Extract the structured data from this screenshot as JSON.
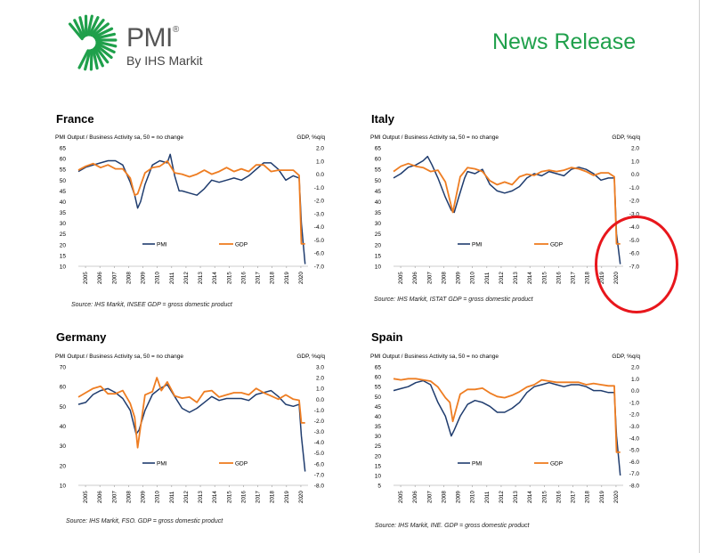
{
  "header": {
    "brand": "PMI",
    "registered": "®",
    "byline": "By IHS Markit",
    "release": "News Release"
  },
  "colors": {
    "pmi": "#1f3c6e",
    "gdp": "#ee7d22",
    "accent": "#1fa04b",
    "annotation": "#e8161c"
  },
  "common": {
    "left_label": "PMI Output / Business Activity sa, 50 = no change",
    "right_label": "GDP, %q/q",
    "legend_pmi": "PMI",
    "legend_gdp": "GDP",
    "years": [
      "2005",
      "2006",
      "2007",
      "2008",
      "2009",
      "2010",
      "2011",
      "2012",
      "2013",
      "2014",
      "2015",
      "2016",
      "2017",
      "2018",
      "2019",
      "2020"
    ]
  },
  "panels": [
    {
      "title": "France",
      "source": "Source: IHS Markit, INSEE GDP = gross domestic product",
      "left_ticks": [
        "65",
        "60",
        "55",
        "50",
        "45",
        "40",
        "35",
        "30",
        "25",
        "20",
        "15",
        "10"
      ],
      "right_ticks": [
        "2.0",
        "1.0",
        "0.0",
        "-1.0",
        "-2.0",
        "-3.0",
        "-4.0",
        "-5.0",
        "-6.0",
        "-7.0"
      ]
    },
    {
      "title": "Italy",
      "source": "Source: IHS Markit, ISTAT GDP = gross domestic product",
      "left_ticks": [
        "65",
        "60",
        "55",
        "50",
        "45",
        "40",
        "35",
        "30",
        "25",
        "20",
        "15",
        "10"
      ],
      "right_ticks": [
        "2.0",
        "1.0",
        "0.0",
        "-1.0",
        "-2.0",
        "-3.0",
        "-4.0",
        "-5.0",
        "-6.0",
        "-7.0"
      ]
    },
    {
      "title": "Germany",
      "source": "Source: IHS Markit, FSO. GDP = gross domestic product",
      "left_ticks": [
        "70",
        "60",
        "50",
        "40",
        "30",
        "20",
        "10"
      ],
      "right_ticks": [
        "3.0",
        "2.0",
        "1.0",
        "0.0",
        "-1.0",
        "-2.0",
        "-3.0",
        "-4.0",
        "-5.0",
        "-6.0",
        "-7.0",
        "-8.0"
      ]
    },
    {
      "title": "Spain",
      "source": "Source: IHS Markit, INE. GDP = gross domestic product",
      "left_ticks": [
        "65",
        "60",
        "55",
        "50",
        "45",
        "40",
        "35",
        "30",
        "25",
        "20",
        "15",
        "10",
        "5"
      ],
      "right_ticks": [
        "2.0",
        "1.0",
        "0.0",
        "-1.0",
        "-2.0",
        "-3.0",
        "-4.0",
        "-5.0",
        "-6.0",
        "-7.0",
        "-8.0"
      ]
    }
  ],
  "chart_data": [
    {
      "type": "line",
      "country": "France",
      "x_range": [
        2005.0,
        2020.5
      ],
      "y_left": [
        10,
        65
      ],
      "y_right": [
        -7,
        2
      ],
      "series": [
        {
          "name": "PMI",
          "axis": "left",
          "x": [
            2005.0,
            2005.5,
            2006.0,
            2006.5,
            2007.0,
            2007.5,
            2008.0,
            2008.5,
            2008.8,
            2009.0,
            2009.2,
            2009.5,
            2010.0,
            2010.5,
            2011.0,
            2011.2,
            2011.5,
            2011.8,
            2012.0,
            2012.5,
            2013.0,
            2013.5,
            2014.0,
            2014.5,
            2015.0,
            2015.5,
            2016.0,
            2016.5,
            2017.0,
            2017.5,
            2018.0,
            2018.5,
            2019.0,
            2019.5,
            2019.9,
            2020.05,
            2020.3
          ],
          "y": [
            54,
            56,
            57,
            58,
            59,
            59,
            57,
            49,
            43,
            37,
            40,
            48,
            57,
            59,
            58,
            62,
            52,
            45,
            45,
            44,
            43,
            46,
            50,
            49,
            50,
            51,
            50,
            52,
            55,
            58,
            58,
            55,
            50,
            52,
            51,
            30,
            11
          ]
        },
        {
          "name": "GDP",
          "axis": "right",
          "x": [
            2005.0,
            2005.5,
            2006.0,
            2006.5,
            2007.0,
            2007.5,
            2008.0,
            2008.5,
            2008.8,
            2009.0,
            2009.5,
            2010.0,
            2010.5,
            2011.0,
            2011.5,
            2012.0,
            2012.5,
            2013.0,
            2013.5,
            2014.0,
            2014.5,
            2015.0,
            2015.5,
            2016.0,
            2016.5,
            2017.0,
            2017.5,
            2018.0,
            2018.5,
            2019.0,
            2019.5,
            2019.9,
            2020.05,
            2020.3
          ],
          "y": [
            0.3,
            0.6,
            0.8,
            0.5,
            0.7,
            0.4,
            0.4,
            -0.3,
            -1.6,
            -1.5,
            0.1,
            0.5,
            0.6,
            1.0,
            0.1,
            0.0,
            -0.2,
            0.0,
            0.3,
            0.0,
            0.2,
            0.5,
            0.2,
            0.4,
            0.2,
            0.7,
            0.7,
            0.2,
            0.3,
            0.3,
            0.3,
            -0.1,
            -5.3,
            -5.3
          ]
        }
      ]
    },
    {
      "type": "line",
      "country": "Italy",
      "x_range": [
        2005.0,
        2020.5
      ],
      "y_left": [
        10,
        65
      ],
      "y_right": [
        -7,
        2
      ],
      "series": [
        {
          "name": "PMI",
          "axis": "left",
          "x": [
            2005.0,
            2005.5,
            2006.0,
            2006.5,
            2007.0,
            2007.3,
            2007.6,
            2008.0,
            2008.5,
            2008.9,
            2009.1,
            2009.4,
            2009.8,
            2010.0,
            2010.5,
            2011.0,
            2011.5,
            2012.0,
            2012.5,
            2013.0,
            2013.5,
            2014.0,
            2014.5,
            2015.0,
            2015.5,
            2016.0,
            2016.5,
            2017.0,
            2017.5,
            2018.0,
            2018.5,
            2019.0,
            2019.5,
            2019.9,
            2020.05,
            2020.3
          ],
          "y": [
            51,
            53,
            56,
            57,
            59,
            61,
            57,
            51,
            42,
            36,
            35,
            42,
            51,
            54,
            53,
            55,
            48,
            45,
            44,
            45,
            47,
            51,
            53,
            52,
            54,
            53,
            52,
            55,
            56,
            55,
            53,
            50,
            51,
            51,
            25,
            11
          ]
        },
        {
          "name": "GDP",
          "axis": "right",
          "x": [
            2005.0,
            2005.5,
            2006.0,
            2006.5,
            2007.0,
            2007.5,
            2008.0,
            2008.5,
            2008.8,
            2009.0,
            2009.5,
            2010.0,
            2010.5,
            2011.0,
            2011.5,
            2012.0,
            2012.5,
            2013.0,
            2013.5,
            2014.0,
            2014.5,
            2015.0,
            2015.5,
            2016.0,
            2016.5,
            2017.0,
            2017.5,
            2018.0,
            2018.5,
            2019.0,
            2019.5,
            2019.9,
            2020.05,
            2020.3
          ],
          "y": [
            0.2,
            0.6,
            0.8,
            0.6,
            0.5,
            0.2,
            0.3,
            -0.6,
            -2.0,
            -2.9,
            -0.2,
            0.5,
            0.4,
            0.2,
            -0.5,
            -0.8,
            -0.6,
            -0.8,
            -0.2,
            0.0,
            -0.1,
            0.2,
            0.3,
            0.2,
            0.3,
            0.5,
            0.4,
            0.2,
            -0.1,
            0.1,
            0.1,
            -0.2,
            -5.3,
            -5.3
          ]
        }
      ]
    },
    {
      "type": "line",
      "country": "Germany",
      "x_range": [
        2005.0,
        2020.5
      ],
      "y_left": [
        10,
        70
      ],
      "y_right": [
        -8,
        3
      ],
      "series": [
        {
          "name": "PMI",
          "axis": "left",
          "x": [
            2005.0,
            2005.5,
            2006.0,
            2006.5,
            2007.0,
            2007.5,
            2008.0,
            2008.5,
            2008.9,
            2009.1,
            2009.5,
            2010.0,
            2010.5,
            2011.0,
            2011.5,
            2012.0,
            2012.5,
            2013.0,
            2013.5,
            2014.0,
            2014.5,
            2015.0,
            2015.5,
            2016.0,
            2016.5,
            2017.0,
            2017.5,
            2018.0,
            2018.5,
            2019.0,
            2019.5,
            2019.9,
            2020.05,
            2020.3
          ],
          "y": [
            51,
            52,
            56,
            58,
            59,
            57,
            54,
            48,
            36,
            38,
            48,
            56,
            59,
            61,
            55,
            49,
            47,
            49,
            52,
            55,
            53,
            54,
            54,
            54,
            53,
            56,
            57,
            58,
            55,
            51,
            50,
            51,
            35,
            17
          ]
        },
        {
          "name": "GDP",
          "axis": "right",
          "x": [
            2005.0,
            2005.5,
            2006.0,
            2006.5,
            2007.0,
            2007.5,
            2008.0,
            2008.5,
            2008.8,
            2009.0,
            2009.5,
            2010.0,
            2010.3,
            2010.6,
            2011.0,
            2011.5,
            2012.0,
            2012.5,
            2013.0,
            2013.5,
            2014.0,
            2014.5,
            2015.0,
            2015.5,
            2016.0,
            2016.5,
            2017.0,
            2017.5,
            2018.0,
            2018.5,
            2019.0,
            2019.5,
            2019.9,
            2020.05,
            2020.3
          ],
          "y": [
            0.2,
            0.6,
            1.0,
            1.2,
            0.5,
            0.5,
            0.8,
            -0.4,
            -1.7,
            -4.5,
            0.4,
            0.7,
            2.0,
            0.8,
            1.6,
            0.3,
            0.1,
            0.2,
            -0.3,
            0.7,
            0.8,
            0.2,
            0.4,
            0.6,
            0.6,
            0.4,
            1.0,
            0.6,
            0.3,
            0.0,
            0.4,
            0.0,
            -0.1,
            -2.2,
            -2.2
          ]
        }
      ]
    },
    {
      "type": "line",
      "country": "Spain",
      "x_range": [
        2005.0,
        2020.5
      ],
      "y_left": [
        5,
        65
      ],
      "y_right": [
        -8,
        2
      ],
      "series": [
        {
          "name": "PMI",
          "axis": "left",
          "x": [
            2005.0,
            2005.5,
            2006.0,
            2006.5,
            2007.0,
            2007.5,
            2008.0,
            2008.5,
            2008.9,
            2009.1,
            2009.5,
            2010.0,
            2010.5,
            2011.0,
            2011.5,
            2012.0,
            2012.5,
            2013.0,
            2013.5,
            2014.0,
            2014.5,
            2015.0,
            2015.5,
            2016.0,
            2016.5,
            2017.0,
            2017.5,
            2018.0,
            2018.5,
            2019.0,
            2019.5,
            2019.9,
            2020.05,
            2020.3
          ],
          "y": [
            53,
            54,
            55,
            57,
            58,
            56,
            47,
            40,
            30,
            33,
            40,
            46,
            48,
            47,
            45,
            42,
            42,
            44,
            47,
            52,
            55,
            56,
            57,
            56,
            55,
            56,
            56,
            55,
            53,
            53,
            52,
            52,
            30,
            10
          ]
        },
        {
          "name": "GDP",
          "axis": "right",
          "x": [
            2005.0,
            2005.5,
            2006.0,
            2006.5,
            2007.0,
            2007.5,
            2008.0,
            2008.5,
            2008.8,
            2009.0,
            2009.5,
            2010.0,
            2010.5,
            2011.0,
            2011.5,
            2012.0,
            2012.5,
            2013.0,
            2013.5,
            2014.0,
            2014.5,
            2015.0,
            2015.5,
            2016.0,
            2016.5,
            2017.0,
            2017.5,
            2018.0,
            2018.5,
            2019.0,
            2019.5,
            2019.9,
            2020.05,
            2020.3
          ],
          "y": [
            1.0,
            0.9,
            1.0,
            1.0,
            0.9,
            0.8,
            0.3,
            -0.6,
            -1.0,
            -2.6,
            -0.3,
            0.1,
            0.1,
            0.2,
            -0.2,
            -0.5,
            -0.6,
            -0.4,
            -0.1,
            0.3,
            0.5,
            0.9,
            0.8,
            0.7,
            0.7,
            0.7,
            0.7,
            0.5,
            0.6,
            0.5,
            0.4,
            0.4,
            -5.2,
            -5.2
          ]
        }
      ]
    }
  ]
}
